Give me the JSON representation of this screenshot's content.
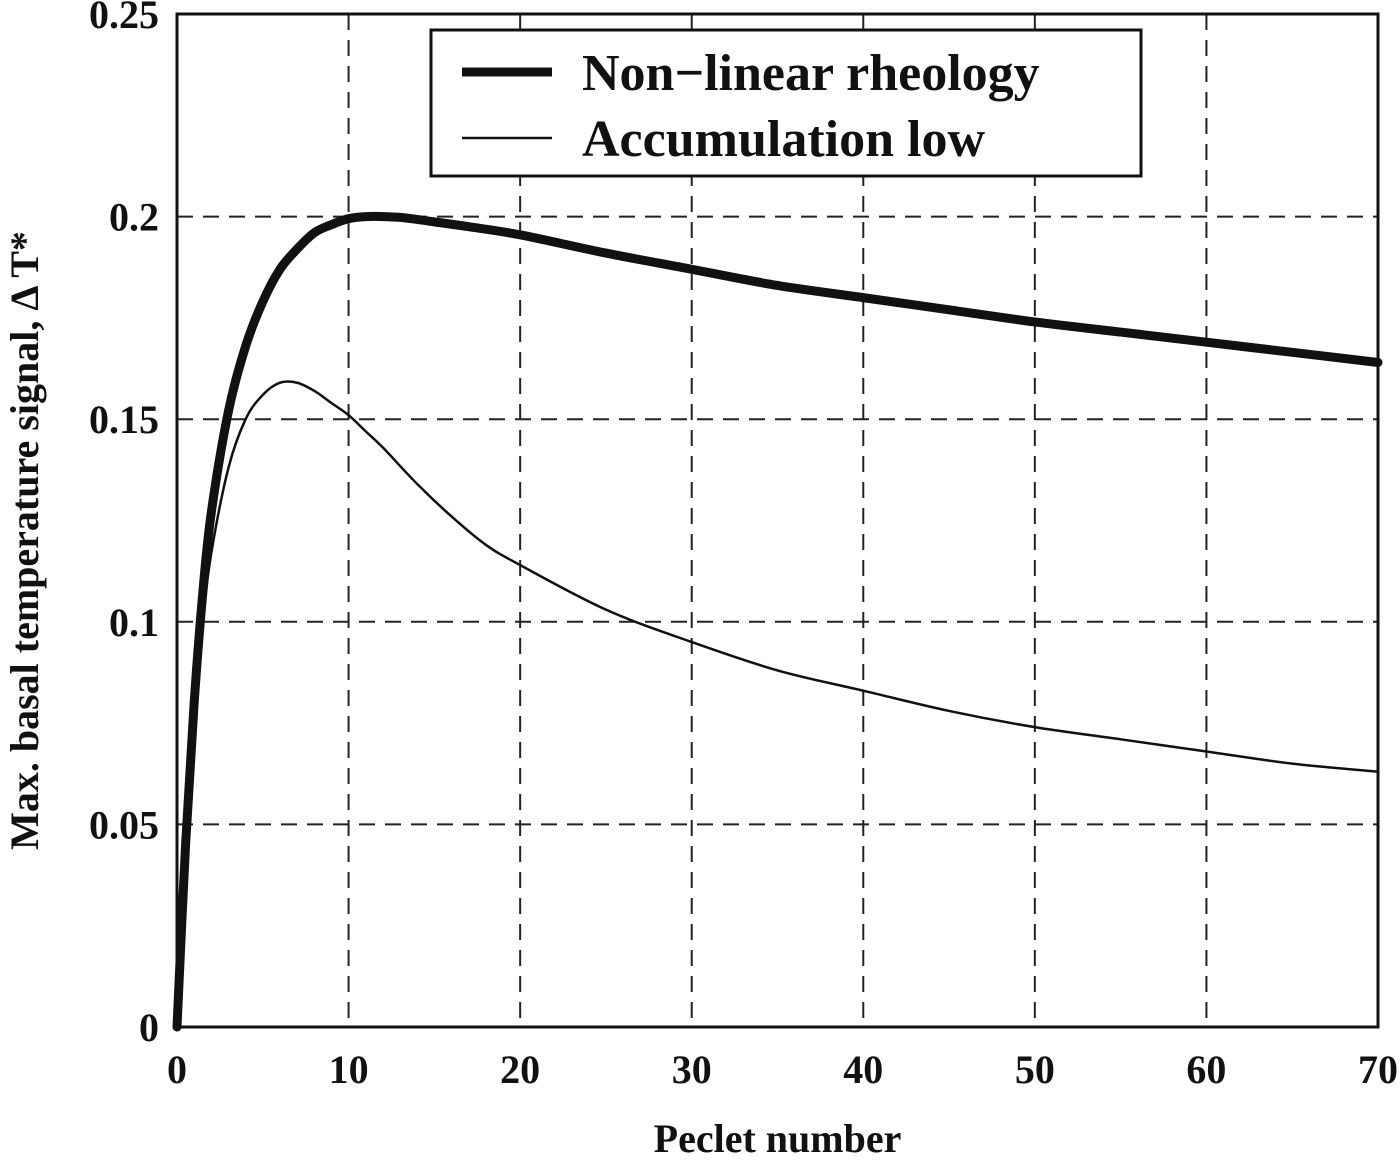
{
  "chart_data": {
    "type": "line",
    "xlabel": "Peclet number",
    "ylabel": "Max. basal temperature signal,  Δ T*",
    "xlim": [
      0,
      70
    ],
    "ylim": [
      0,
      0.25
    ],
    "xticks": [
      0,
      10,
      20,
      30,
      40,
      50,
      60,
      70
    ],
    "yticks": [
      0,
      0.05,
      0.1,
      0.15,
      0.2,
      0.25
    ],
    "xtick_labels": [
      "0",
      "10",
      "20",
      "30",
      "40",
      "50",
      "60",
      "70"
    ],
    "ytick_labels": [
      "0",
      "0.05",
      "0.1",
      "0.15",
      "0.2",
      "0.25"
    ],
    "grid": true,
    "legend_position": "top-center",
    "series": [
      {
        "name": "Non−linear rheology",
        "line_style": "thick",
        "color": "#111111",
        "x": [
          0,
          0.5,
          1,
          1.5,
          2,
          3,
          4,
          5,
          6,
          7,
          8,
          9,
          10,
          11,
          12,
          13,
          14,
          15,
          17,
          20,
          25,
          30,
          35,
          40,
          45,
          50,
          55,
          60,
          65,
          70
        ],
        "y": [
          0,
          0.045,
          0.08,
          0.107,
          0.127,
          0.152,
          0.168,
          0.179,
          0.187,
          0.192,
          0.196,
          0.198,
          0.1995,
          0.2,
          0.2,
          0.1998,
          0.1993,
          0.1987,
          0.1975,
          0.1955,
          0.191,
          0.187,
          0.183,
          0.18,
          0.177,
          0.174,
          0.1715,
          0.169,
          0.1665,
          0.164
        ]
      },
      {
        "name": "Accumulation low",
        "line_style": "thin",
        "color": "#111111",
        "x": [
          0,
          0.5,
          1,
          1.5,
          2,
          3,
          4,
          5,
          6,
          7,
          8,
          9,
          10,
          11,
          12,
          14,
          16,
          18,
          20,
          25,
          30,
          35,
          40,
          45,
          50,
          55,
          60,
          65,
          70
        ],
        "y": [
          0,
          0.043,
          0.076,
          0.1,
          0.117,
          0.138,
          0.15,
          0.156,
          0.159,
          0.159,
          0.157,
          0.154,
          0.151,
          0.147,
          0.143,
          0.134,
          0.126,
          0.119,
          0.114,
          0.103,
          0.095,
          0.088,
          0.083,
          0.078,
          0.074,
          0.071,
          0.068,
          0.065,
          0.063
        ]
      }
    ]
  }
}
